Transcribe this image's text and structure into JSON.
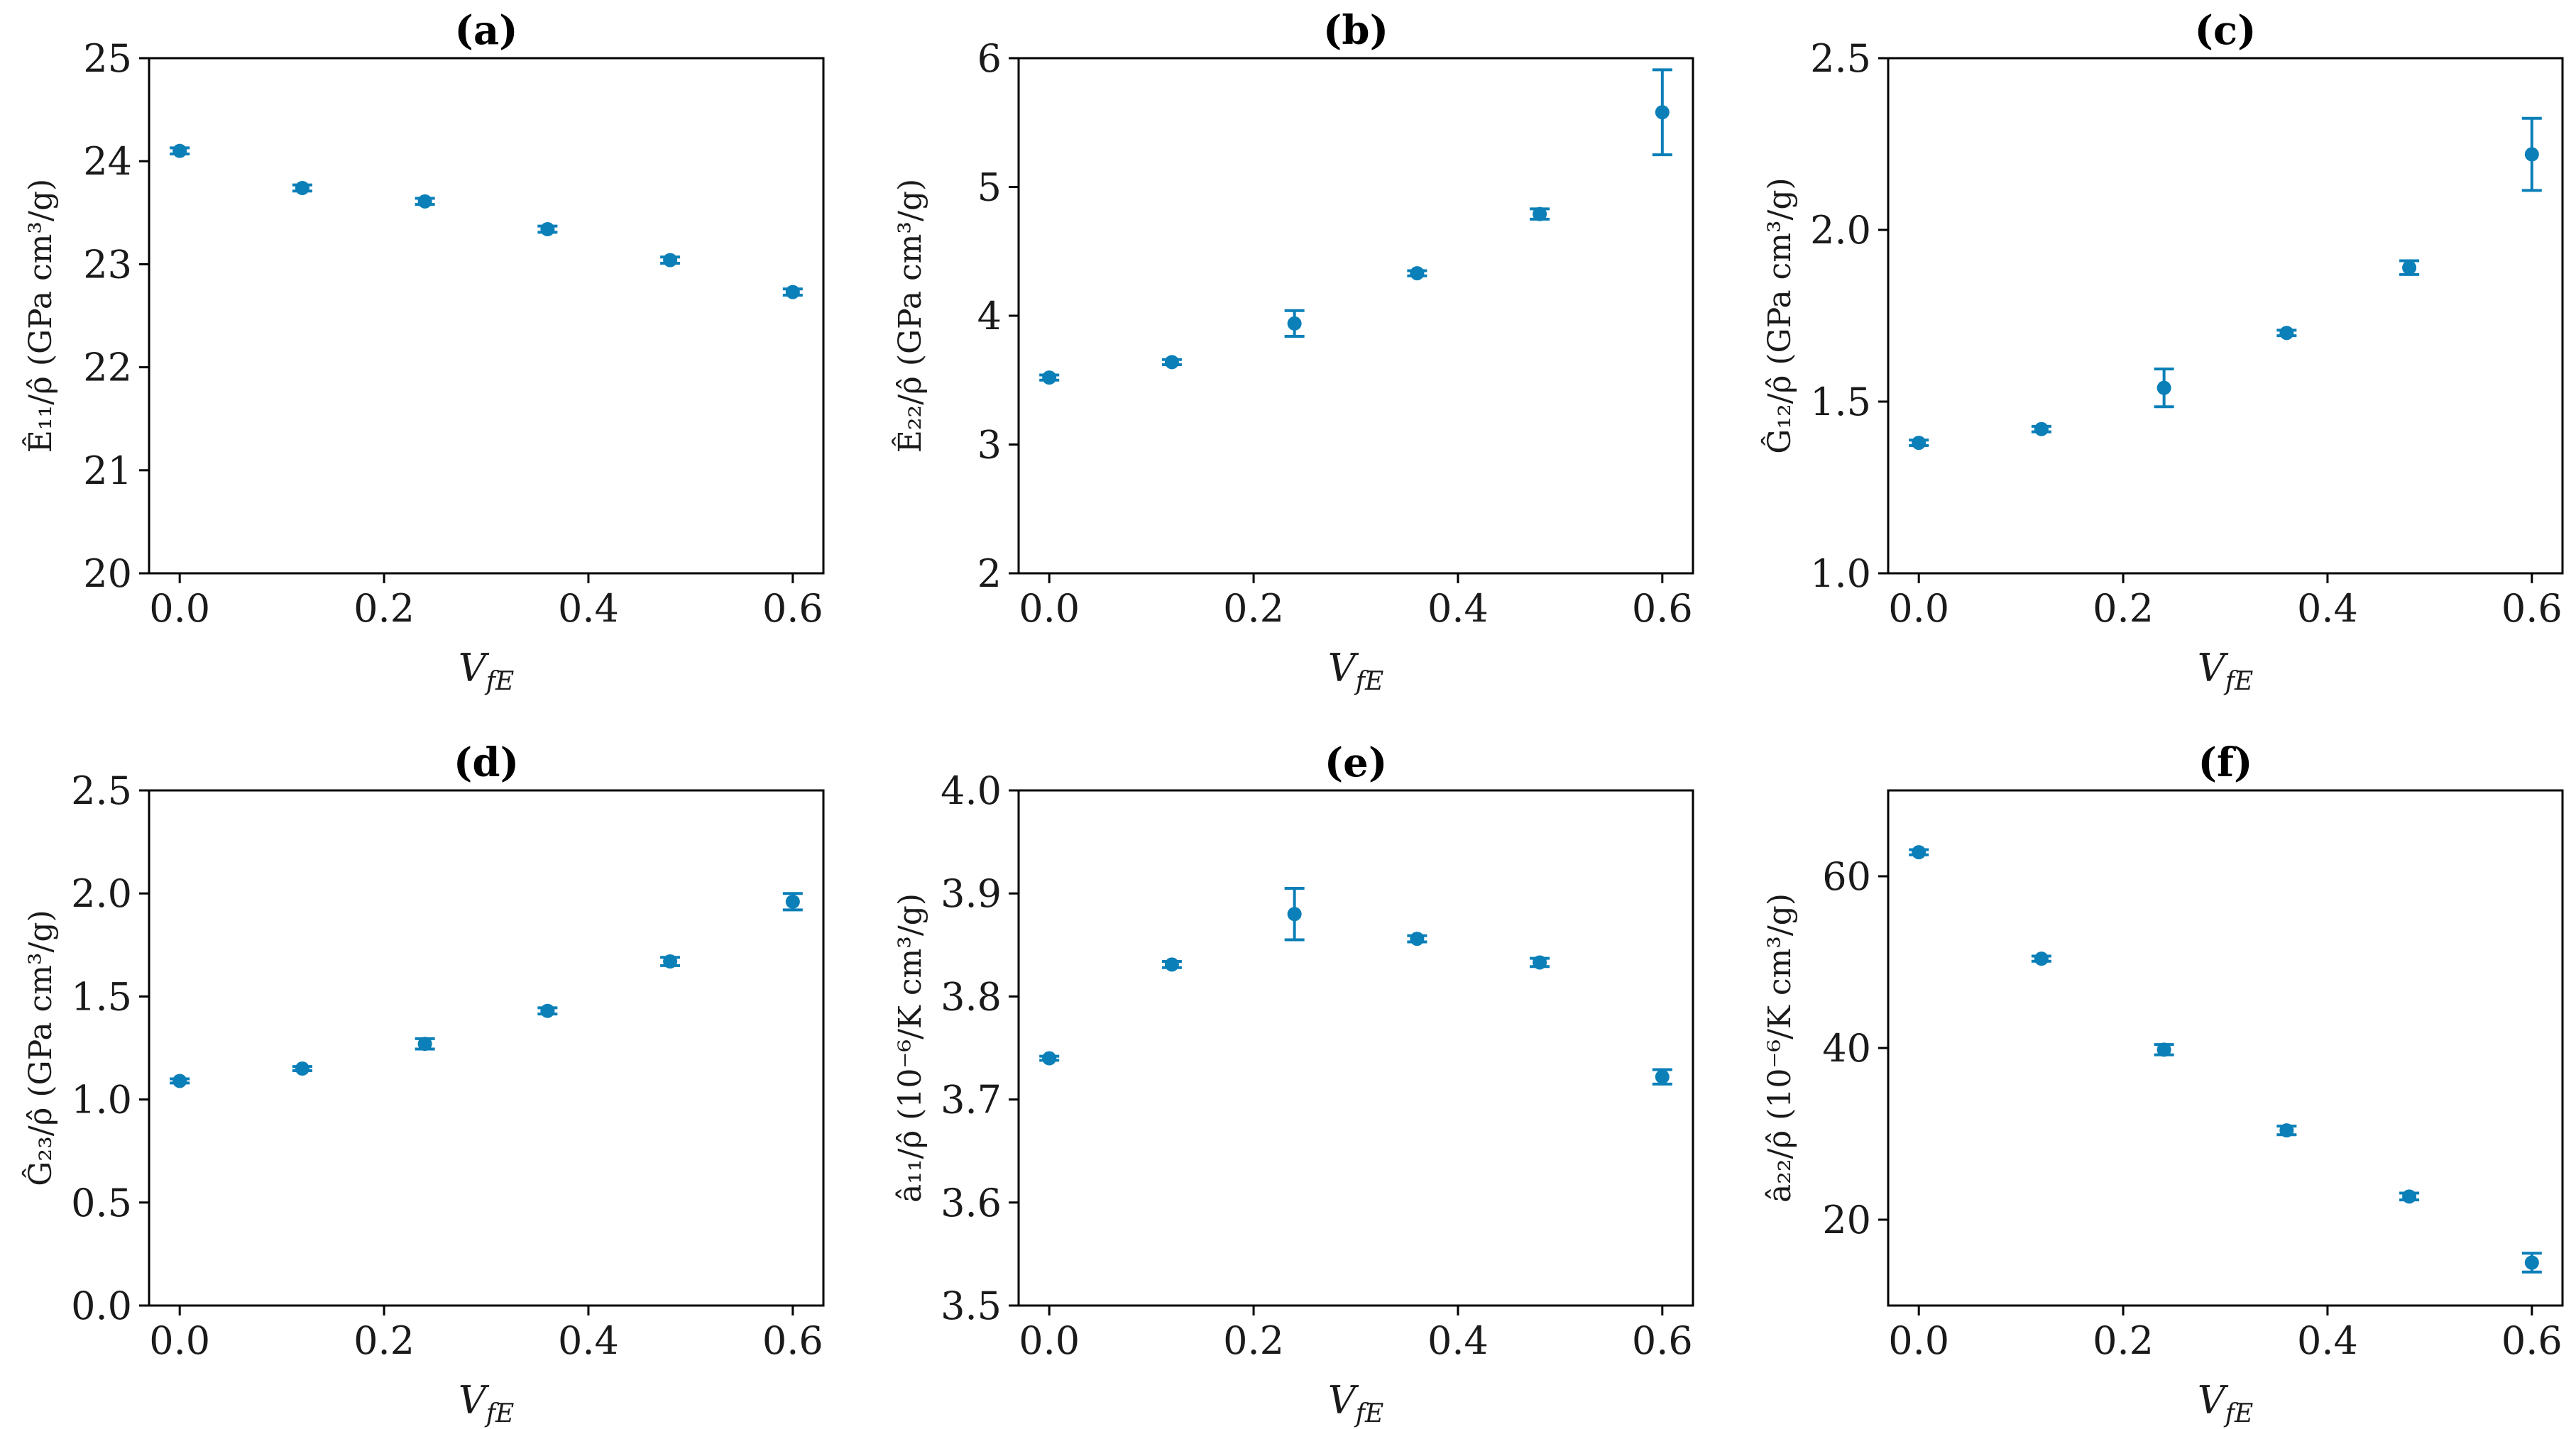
{
  "figure": {
    "accent_color": "#0a7fb8",
    "line_color": "#000000"
  },
  "chart_data": [
    {
      "panel": "(a)",
      "type": "scatter",
      "x": [
        0.0,
        0.12,
        0.24,
        0.36,
        0.48,
        0.6
      ],
      "y": [
        24.1,
        23.74,
        23.61,
        23.34,
        23.04,
        22.73
      ],
      "yerr": [
        0.03,
        0.03,
        0.03,
        0.03,
        0.03,
        0.03
      ],
      "xlabel_main": "V",
      "xlabel_sub": "fE",
      "ylabel": "Ê₁₁/ρ̂ (GPa cm³/g)",
      "xlim": [
        -0.03,
        0.63
      ],
      "ylim": [
        20,
        25
      ],
      "xticks": [
        "0.0",
        "0.2",
        "0.4",
        "0.6"
      ],
      "xtick_values": [
        0.0,
        0.2,
        0.4,
        0.6
      ],
      "yticks": [
        "20",
        "21",
        "22",
        "23",
        "24",
        "25"
      ],
      "ytick_values": [
        20,
        21,
        22,
        23,
        24,
        25
      ]
    },
    {
      "panel": "(b)",
      "type": "scatter",
      "x": [
        0.0,
        0.12,
        0.24,
        0.36,
        0.48,
        0.6
      ],
      "y": [
        3.52,
        3.64,
        3.94,
        4.33,
        4.79,
        5.58
      ],
      "yerr": [
        0.02,
        0.02,
        0.1,
        0.02,
        0.04,
        0.33
      ],
      "xlabel_main": "V",
      "xlabel_sub": "fE",
      "ylabel": "Ê₂₂/ρ̂ (GPa cm³/g)",
      "xlim": [
        -0.03,
        0.63
      ],
      "ylim": [
        2,
        6
      ],
      "xticks": [
        "0.0",
        "0.2",
        "0.4",
        "0.6"
      ],
      "xtick_values": [
        0.0,
        0.2,
        0.4,
        0.6
      ],
      "yticks": [
        "2",
        "3",
        "4",
        "5",
        "6"
      ],
      "ytick_values": [
        2,
        3,
        4,
        5,
        6
      ]
    },
    {
      "panel": "(c)",
      "type": "scatter",
      "x": [
        0.0,
        0.12,
        0.24,
        0.36,
        0.48,
        0.6
      ],
      "y": [
        1.38,
        1.42,
        1.54,
        1.7,
        1.89,
        2.22
      ],
      "yerr": [
        0.008,
        0.008,
        0.055,
        0.008,
        0.02,
        0.105
      ],
      "xlabel_main": "V",
      "xlabel_sub": "fE",
      "ylabel": "Ĝ₁₂/ρ̂ (GPa cm³/g)",
      "xlim": [
        -0.03,
        0.63
      ],
      "ylim": [
        1.0,
        2.5
      ],
      "xticks": [
        "0.0",
        "0.2",
        "0.4",
        "0.6"
      ],
      "xtick_values": [
        0.0,
        0.2,
        0.4,
        0.6
      ],
      "yticks": [
        "1.0",
        "1.5",
        "2.0",
        "2.5"
      ],
      "ytick_values": [
        1.0,
        1.5,
        2.0,
        2.5
      ]
    },
    {
      "panel": "(d)",
      "type": "scatter",
      "x": [
        0.0,
        0.12,
        0.24,
        0.36,
        0.48,
        0.6
      ],
      "y": [
        1.09,
        1.15,
        1.27,
        1.43,
        1.67,
        1.96
      ],
      "yerr": [
        0.01,
        0.01,
        0.025,
        0.015,
        0.02,
        0.04
      ],
      "xlabel_main": "V",
      "xlabel_sub": "fE",
      "ylabel": "Ĝ₂₃/ρ̂ (GPa cm³/g)",
      "xlim": [
        -0.03,
        0.63
      ],
      "ylim": [
        0.0,
        2.5
      ],
      "xticks": [
        "0.0",
        "0.2",
        "0.4",
        "0.6"
      ],
      "xtick_values": [
        0.0,
        0.2,
        0.4,
        0.6
      ],
      "yticks": [
        "0.0",
        "0.5",
        "1.0",
        "1.5",
        "2.0",
        "2.5"
      ],
      "ytick_values": [
        0.0,
        0.5,
        1.0,
        1.5,
        2.0,
        2.5
      ]
    },
    {
      "panel": "(e)",
      "type": "scatter",
      "x": [
        0.0,
        0.12,
        0.24,
        0.36,
        0.48,
        0.6
      ],
      "y": [
        3.74,
        3.831,
        3.88,
        3.856,
        3.833,
        3.722
      ],
      "yerr": [
        0.002,
        0.003,
        0.025,
        0.003,
        0.004,
        0.007
      ],
      "xlabel_main": "V",
      "xlabel_sub": "fE",
      "ylabel": "â₁₁/ρ̂ (10⁻⁶/K cm³/g)",
      "xlim": [
        -0.03,
        0.63
      ],
      "ylim": [
        3.5,
        4.0
      ],
      "xticks": [
        "0.0",
        "0.2",
        "0.4",
        "0.6"
      ],
      "xtick_values": [
        0.0,
        0.2,
        0.4,
        0.6
      ],
      "yticks": [
        "3.5",
        "3.6",
        "3.7",
        "3.8",
        "3.9",
        "4.0"
      ],
      "ytick_values": [
        3.5,
        3.6,
        3.7,
        3.8,
        3.9,
        4.0
      ]
    },
    {
      "panel": "(f)",
      "type": "scatter",
      "x": [
        0.0,
        0.12,
        0.24,
        0.36,
        0.48,
        0.6
      ],
      "y": [
        62.8,
        50.4,
        39.8,
        30.4,
        22.7,
        15.0
      ],
      "yerr": [
        0.3,
        0.3,
        0.6,
        0.5,
        0.4,
        1.1
      ],
      "xlabel_main": "V",
      "xlabel_sub": "fE",
      "ylabel": "â₂₂/ρ̂ (10⁻⁶/K cm³/g)",
      "xlim": [
        -0.03,
        0.63
      ],
      "ylim": [
        10,
        70
      ],
      "xticks": [
        "0.0",
        "0.2",
        "0.4",
        "0.6"
      ],
      "xtick_values": [
        0.0,
        0.2,
        0.4,
        0.6
      ],
      "yticks": [
        "20",
        "40",
        "60"
      ],
      "ytick_values": [
        20,
        40,
        60
      ]
    }
  ]
}
